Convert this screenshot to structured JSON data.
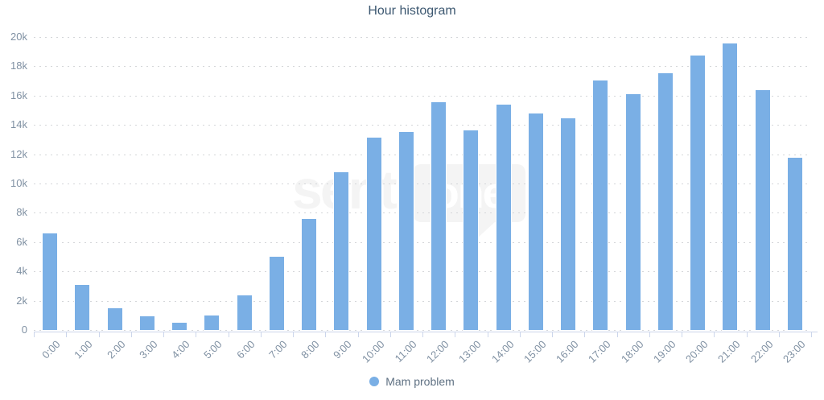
{
  "chart": {
    "title": "Hour histogram"
  },
  "legend": {
    "label": "Mam problem"
  },
  "watermark": {
    "text_left": "senti",
    "text_bubble": "one"
  },
  "colors": {
    "bar": "#7aafe5",
    "title": "#3d5871",
    "axis_labels": "#8091a3",
    "legend_text": "#5f7183",
    "gridline": "#d4d6d9",
    "axis_line": "#ccd6eb",
    "watermark": "#f4f4f4"
  },
  "chart_data": {
    "type": "bar",
    "title": "Hour histogram",
    "categories": [
      "0:00",
      "1:00",
      "2:00",
      "3:00",
      "4:00",
      "5:00",
      "6:00",
      "7:00",
      "8:00",
      "9:00",
      "10:00",
      "11:00",
      "12:00",
      "13:00",
      "14:00",
      "15:00",
      "16:00",
      "17:00",
      "18:00",
      "19:00",
      "20:00",
      "21:00",
      "22:00",
      "23:00"
    ],
    "series": [
      {
        "name": "Mam problem",
        "values": [
          6700,
          3200,
          1600,
          1050,
          600,
          1100,
          2450,
          5100,
          7700,
          10900,
          13250,
          13600,
          15650,
          13750,
          15500,
          14900,
          14550,
          17150,
          16200,
          17650,
          18850,
          19650,
          16500,
          11850
        ]
      }
    ],
    "xlabel": "",
    "ylabel": "",
    "ylim": [
      0,
      20000
    ],
    "ytick_step": 2000,
    "ytick_labels": [
      "0",
      "2k",
      "4k",
      "6k",
      "8k",
      "10k",
      "12k",
      "14k",
      "16k",
      "18k",
      "20k"
    ],
    "grid": "horizontal-dotted",
    "x_label_rotation": -45,
    "legend_position": "bottom-center",
    "bar_color": "#7aafe5"
  }
}
